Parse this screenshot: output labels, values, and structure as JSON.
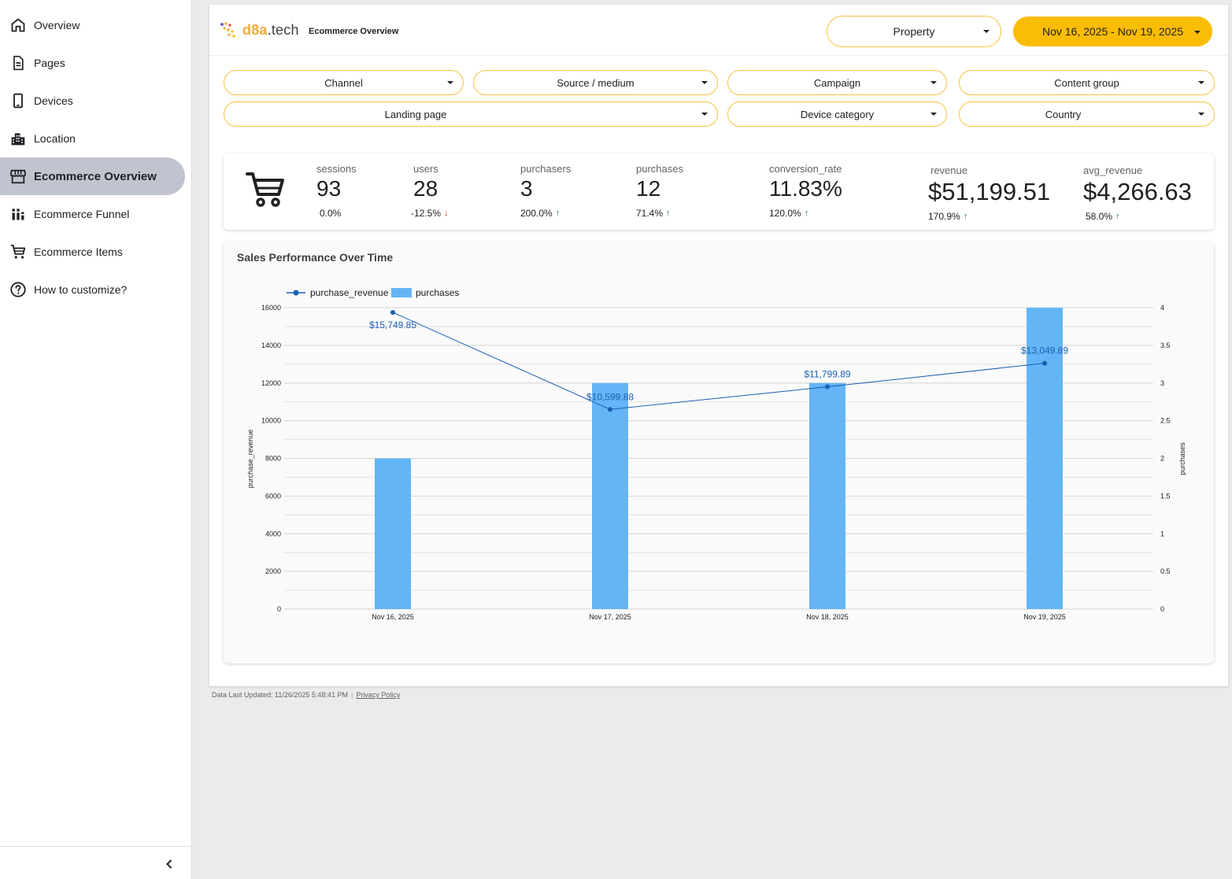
{
  "sidebar": {
    "items": [
      {
        "label": "Overview",
        "icon": "home-icon"
      },
      {
        "label": "Pages",
        "icon": "document-icon"
      },
      {
        "label": "Devices",
        "icon": "phone-icon"
      },
      {
        "label": "Location",
        "icon": "city-icon"
      },
      {
        "label": "Ecommerce Overview",
        "icon": "storefront-icon",
        "active": true
      },
      {
        "label": "Ecommerce Funnel",
        "icon": "bar-chart-icon"
      },
      {
        "label": "Ecommerce Items",
        "icon": "cart-icon"
      },
      {
        "label": "How to customize?",
        "icon": "help-icon"
      }
    ]
  },
  "header": {
    "logo_brand": "d8a",
    "logo_dot": ".tech",
    "report_title": "Ecommerce Overview",
    "property_label": "Property",
    "date_range": "Nov 16, 2025 - Nov 19, 2025"
  },
  "filters": {
    "channel": "Channel",
    "source_medium": "Source / medium",
    "campaign": "Campaign",
    "content_group": "Content group",
    "landing_page": "Landing page",
    "device_category": "Device category",
    "country": "Country"
  },
  "kpis": {
    "sessions": {
      "label": "sessions",
      "value": "93",
      "change": "0.0%"
    },
    "users": {
      "label": "users",
      "value": "28",
      "change": "-12.5%"
    },
    "purchasers": {
      "label": "purchasers",
      "value": "3",
      "change": "200.0%"
    },
    "purchases": {
      "label": "purchases",
      "value": "12",
      "change": "71.4%"
    },
    "conversion_rate": {
      "label": "conversion_rate",
      "value": "11.83%",
      "change": "120.0%"
    },
    "revenue": {
      "label": "revenue",
      "value": "$51,199.51",
      "change": "170.9%"
    },
    "avg_revenue": {
      "label": "avg_revenue",
      "value": "$4,266.63",
      "change": "58.0%"
    }
  },
  "chart": {
    "title": "Sales Performance Over Time"
  },
  "chart_data": {
    "type": "bar",
    "categories": [
      "Nov 16, 2025",
      "Nov 17, 2025",
      "Nov 18, 2025",
      "Nov 19, 2025"
    ],
    "series": [
      {
        "name": "purchase_revenue",
        "type": "line",
        "axis": "left",
        "values": [
          15749.85,
          10599.88,
          11799.89,
          13049.89
        ],
        "labels": [
          "$15,749.85",
          "$10,599.88",
          "$11,799.89",
          "$13,049.89"
        ],
        "color": "#1a5fb4"
      },
      {
        "name": "purchases",
        "type": "bar",
        "axis": "right",
        "values": [
          2,
          3,
          3,
          4
        ],
        "color": "#64b5f6"
      }
    ],
    "ylabel": "purchase_revenue",
    "y2label": "purchases",
    "ylim": [
      0,
      16000
    ],
    "y2lim": [
      0,
      4
    ],
    "yticks": [
      "0",
      "2000",
      "4000",
      "6000",
      "8000",
      "10000",
      "12000",
      "14000",
      "16000"
    ],
    "y2ticks": [
      "0",
      "0.5",
      "1",
      "1.5",
      "2",
      "2.5",
      "3",
      "3.5",
      "4"
    ],
    "legend": "top-left",
    "grid": true
  },
  "footer": {
    "updated": "Data Last Updated: 11/26/2025 5:48:41 PM",
    "privacy": "Privacy Policy"
  }
}
